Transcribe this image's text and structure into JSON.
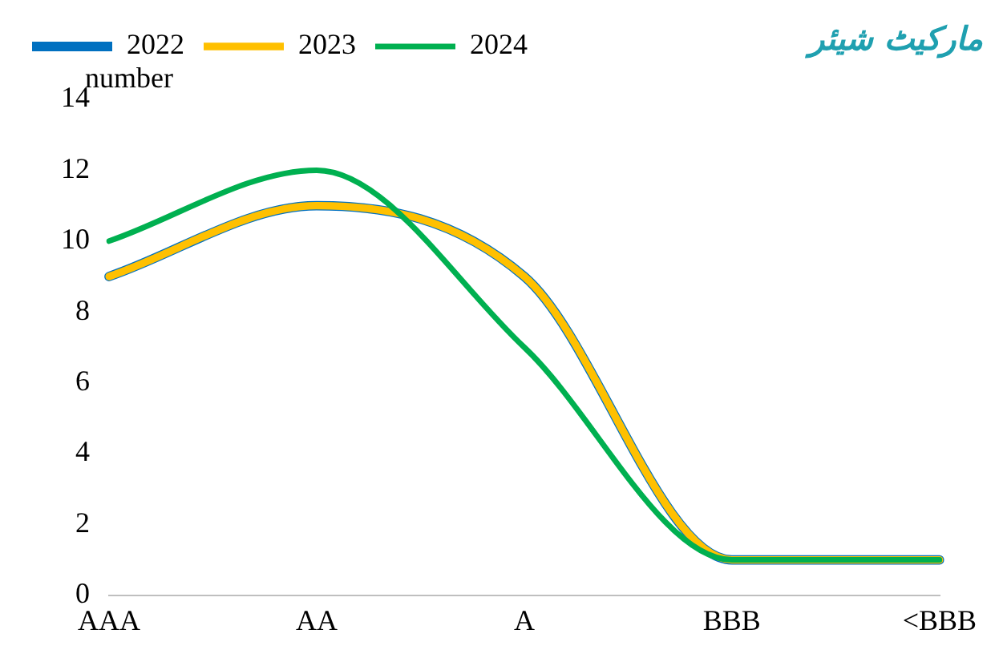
{
  "chart_data": {
    "type": "line",
    "title": "مارکیٹ شیئر",
    "ylabel": "number",
    "categories": [
      "AAA",
      "AA",
      "A",
      "BBB",
      "<BBB"
    ],
    "series": [
      {
        "name": "2022",
        "color": "#0070c0",
        "values": [
          9,
          11,
          9,
          1,
          1
        ]
      },
      {
        "name": "2023",
        "color": "#ffc000",
        "values": [
          9,
          11,
          9,
          1,
          1
        ]
      },
      {
        "name": "2024",
        "color": "#00b050",
        "values": [
          10,
          12,
          7,
          1,
          1
        ]
      }
    ],
    "ylim": [
      0,
      14
    ],
    "yticks": [
      0,
      2,
      4,
      6,
      8,
      10,
      12,
      14
    ],
    "grid": false,
    "legend": "top left",
    "marker": "none"
  }
}
